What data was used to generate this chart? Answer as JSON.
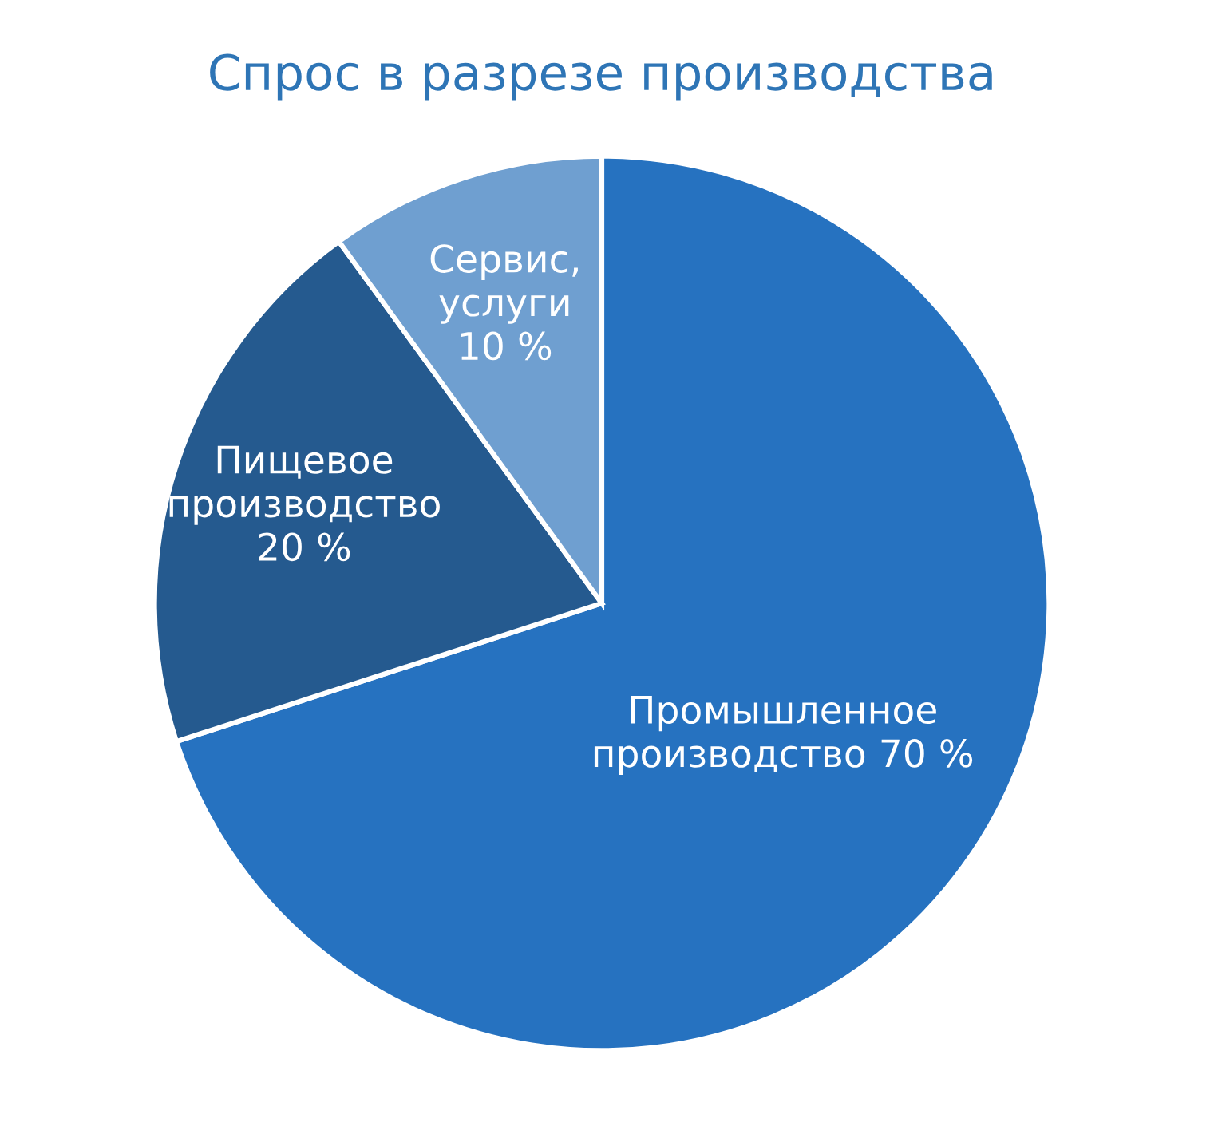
{
  "chart_data": {
    "type": "pie",
    "title": "Спрос в разрезе производства",
    "categories": [
      "Промышленное\nпроизводство",
      "Пищевое\nпроизводство",
      "Сервис,\nуслуги"
    ],
    "values": [
      70,
      20,
      10
    ],
    "colors": [
      "#2672c0",
      "#255a8f",
      "#6f9fd0"
    ],
    "value_labels": [
      "70 %",
      "20 %",
      "10 %"
    ]
  }
}
